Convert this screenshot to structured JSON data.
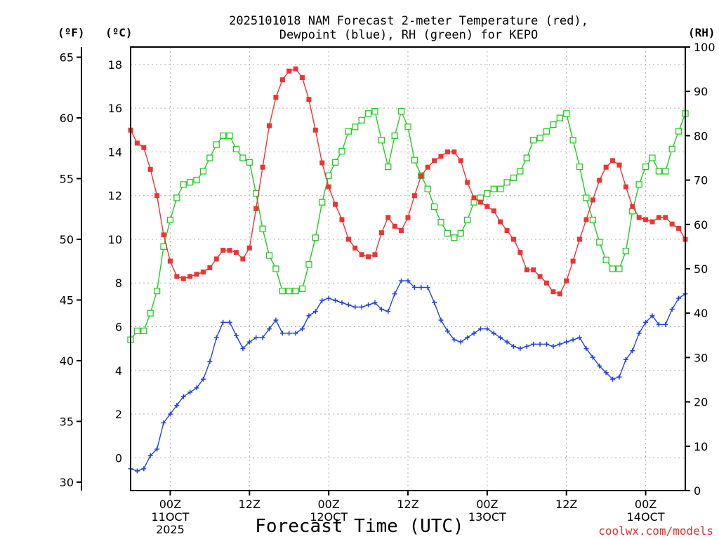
{
  "chart_data": {
    "type": "line",
    "title_line1": "2025101018 NAM Forecast 2-meter Temperature (red),",
    "title_line2": "Dewpoint (blue), RH (green) for KEPO",
    "xlabel": "Forecast Time (UTC)",
    "credit": "coolwx.com/models",
    "unit_left_f": "(ºF)",
    "unit_left_c": "(ºC)",
    "unit_right": "(RH)",
    "x_start_hour": 18,
    "x_end_hour": 102,
    "x_step_hours": 1,
    "x_ticks": [
      {
        "hour": 24,
        "label": "00Z",
        "sub1": "11OCT",
        "sub2": "2025"
      },
      {
        "hour": 36,
        "label": "12Z",
        "sub1": "",
        "sub2": ""
      },
      {
        "hour": 48,
        "label": "00Z",
        "sub1": "12OCT",
        "sub2": ""
      },
      {
        "hour": 60,
        "label": "12Z",
        "sub1": "",
        "sub2": ""
      },
      {
        "hour": 72,
        "label": "00Z",
        "sub1": "13OCT",
        "sub2": ""
      },
      {
        "hour": 84,
        "label": "12Z",
        "sub1": "",
        "sub2": ""
      },
      {
        "hour": 96,
        "label": "00Z",
        "sub1": "14OCT",
        "sub2": ""
      }
    ],
    "y_celsius_range": [
      -1.5,
      18.8
    ],
    "y_celsius_ticks": [
      "0",
      "2",
      "4",
      "6",
      "8",
      "10",
      "12",
      "14",
      "16",
      "18"
    ],
    "y_fahrenheit_ticks": [
      "30",
      "35",
      "40",
      "45",
      "50",
      "55",
      "60",
      "65"
    ],
    "y_rh_range": [
      0,
      100
    ],
    "y_rh_ticks": [
      "0",
      "10",
      "20",
      "30",
      "40",
      "50",
      "60",
      "70",
      "80",
      "90",
      "100"
    ],
    "colors": {
      "temperature": "#ee3333",
      "dewpoint": "#2244dd",
      "rh": "#22cc22",
      "grid": "#b0b0b0",
      "credit": "#e03030"
    },
    "series": [
      {
        "name": "Temperature (°C)",
        "axis": "celsius",
        "marker": "filled-square",
        "values": [
          15.0,
          14.4,
          14.2,
          13.2,
          12.0,
          10.2,
          9.0,
          8.3,
          8.2,
          8.3,
          8.4,
          8.5,
          8.7,
          9.1,
          9.5,
          9.5,
          9.4,
          9.1,
          9.6,
          11.4,
          13.3,
          15.2,
          16.5,
          17.3,
          17.7,
          17.8,
          17.4,
          16.4,
          15.0,
          13.5,
          12.4,
          11.6,
          10.9,
          10.0,
          9.6,
          9.3,
          9.2,
          9.3,
          10.3,
          11.0,
          10.6,
          10.4,
          11.0,
          12.0,
          12.9,
          13.3,
          13.6,
          13.8,
          14.0,
          14.0,
          13.6,
          12.6,
          11.9,
          11.7,
          11.5,
          11.3,
          10.8,
          10.4,
          10.0,
          9.4,
          8.6,
          8.6,
          8.3,
          8.0,
          7.6,
          7.5,
          8.1,
          9.0,
          10.0,
          10.9,
          11.8,
          12.7,
          13.3,
          13.6,
          13.4,
          12.4,
          11.5,
          11.0,
          10.9,
          10.8,
          11.0,
          11.0,
          10.7,
          10.5,
          10.0
        ]
      },
      {
        "name": "Dewpoint (°C)",
        "axis": "celsius",
        "marker": "plus",
        "values": [
          -0.5,
          -0.6,
          -0.5,
          0.1,
          0.4,
          1.6,
          2.0,
          2.4,
          2.8,
          3.0,
          3.2,
          3.6,
          4.4,
          5.5,
          6.2,
          6.2,
          5.6,
          5.0,
          5.3,
          5.5,
          5.5,
          5.9,
          6.3,
          5.7,
          5.7,
          5.7,
          5.9,
          6.5,
          6.7,
          7.2,
          7.3,
          7.2,
          7.1,
          7.0,
          6.9,
          6.9,
          7.0,
          7.1,
          6.8,
          6.7,
          7.5,
          8.1,
          8.1,
          7.8,
          7.8,
          7.8,
          7.1,
          6.3,
          5.8,
          5.4,
          5.3,
          5.5,
          5.7,
          5.9,
          5.9,
          5.7,
          5.5,
          5.3,
          5.1,
          5.0,
          5.1,
          5.2,
          5.2,
          5.2,
          5.1,
          5.2,
          5.3,
          5.4,
          5.5,
          5.0,
          4.6,
          4.2,
          3.9,
          3.6,
          3.7,
          4.5,
          4.9,
          5.7,
          6.2,
          6.5,
          6.1,
          6.1,
          6.8,
          7.3,
          7.5
        ]
      },
      {
        "name": "RH (%)",
        "axis": "rh",
        "marker": "open-square",
        "values": [
          34,
          36,
          36,
          40,
          45,
          55,
          61,
          66,
          69,
          69.5,
          70,
          72,
          75,
          78,
          80,
          80,
          77,
          75,
          74,
          67,
          59,
          53,
          50,
          45,
          45,
          45,
          45.5,
          51,
          57,
          65,
          71,
          74,
          76.5,
          81,
          82,
          83.5,
          85,
          85.5,
          79,
          73,
          80,
          85.5,
          82,
          74.5,
          71,
          68,
          64,
          60.5,
          58,
          57,
          58,
          61,
          65,
          66,
          67,
          68,
          68,
          69.5,
          70.5,
          72,
          75,
          79,
          79.5,
          81,
          82.5,
          84,
          85,
          79,
          73,
          66,
          61,
          56,
          52,
          50,
          50,
          54,
          63,
          69,
          73,
          75,
          72,
          72,
          77,
          81,
          85
        ]
      }
    ]
  }
}
